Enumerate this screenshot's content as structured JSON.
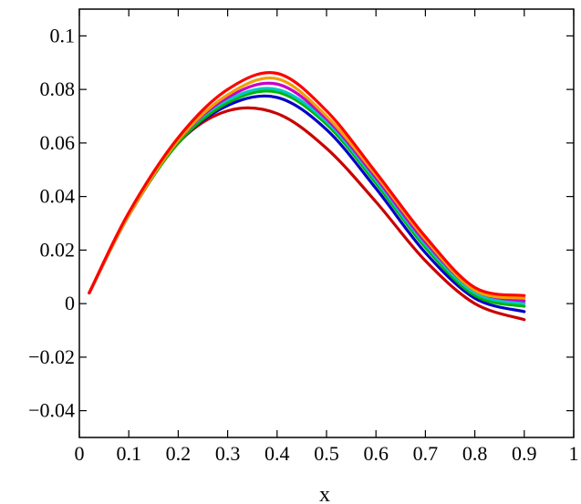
{
  "chart_data": {
    "type": "line",
    "title": "",
    "xlabel": "x",
    "ylabel": "",
    "xlim": [
      0,
      1
    ],
    "ylim": [
      -0.05,
      0.11
    ],
    "x_ticks": [
      0,
      0.1,
      0.2,
      0.3,
      0.4,
      0.5,
      0.6,
      0.7,
      0.8,
      0.9,
      1
    ],
    "x_tick_labels": [
      "0",
      "0.1",
      "0.2",
      "0.3",
      "0.4",
      "0.5",
      "0.6",
      "0.7",
      "0.8",
      "0.9",
      "1"
    ],
    "y_ticks": [
      -0.04,
      -0.02,
      0,
      0.02,
      0.04,
      0.06,
      0.08,
      0.1
    ],
    "y_tick_labels": [
      "−0.04",
      "−0.02",
      "0",
      "0.02",
      "0.04",
      "0.06",
      "0.08",
      "0.1"
    ],
    "grid": false,
    "legend": "none",
    "x": [
      0.02,
      0.1,
      0.2,
      0.3,
      0.4,
      0.5,
      0.6,
      0.7,
      0.8,
      0.9
    ],
    "series": [
      {
        "color": "#c80000",
        "values": [
          0.004,
          0.033,
          0.06,
          0.072,
          0.071,
          0.058,
          0.038,
          0.016,
          0.0,
          -0.006
        ]
      },
      {
        "color": "#0000c8",
        "values": [
          0.004,
          0.033,
          0.06,
          0.074,
          0.077,
          0.065,
          0.043,
          0.019,
          0.002,
          -0.003
        ]
      },
      {
        "color": "#00b400",
        "values": [
          0.004,
          0.033,
          0.06,
          0.075,
          0.079,
          0.067,
          0.045,
          0.021,
          0.003,
          -0.001
        ]
      },
      {
        "color": "#00c8c8",
        "values": [
          0.004,
          0.033,
          0.061,
          0.076,
          0.08,
          0.068,
          0.046,
          0.022,
          0.004,
          0.0
        ]
      },
      {
        "color": "#c800c8",
        "values": [
          0.004,
          0.033,
          0.061,
          0.077,
          0.082,
          0.069,
          0.047,
          0.023,
          0.005,
          0.001
        ]
      },
      {
        "color": "#f0a000",
        "values": [
          0.004,
          0.033,
          0.061,
          0.078,
          0.084,
          0.07,
          0.048,
          0.024,
          0.005,
          0.002
        ]
      },
      {
        "color": "#ff0000",
        "values": [
          0.004,
          0.034,
          0.062,
          0.08,
          0.086,
          0.072,
          0.049,
          0.025,
          0.006,
          0.003
        ]
      }
    ]
  }
}
